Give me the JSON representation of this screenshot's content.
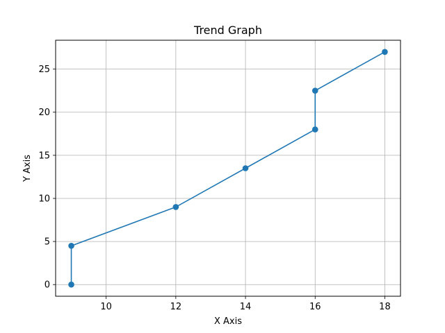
{
  "chart_data": {
    "type": "line",
    "title": "Trend Graph",
    "xlabel": "X Axis",
    "ylabel": "Y Axis",
    "xlim": [
      8.55,
      18.45
    ],
    "ylim": [
      -1.35,
      28.35
    ],
    "xticks": [
      10,
      12,
      14,
      16,
      18
    ],
    "yticks": [
      0,
      5,
      10,
      15,
      20,
      25
    ],
    "grid": true,
    "legend": "none",
    "series": [
      {
        "x": [
          9,
          9,
          12,
          14,
          16,
          16,
          18
        ],
        "y": [
          0,
          4.5,
          9,
          13.5,
          18,
          22.5,
          27
        ],
        "color": "#1f77b4",
        "marker": "circle"
      }
    ]
  }
}
